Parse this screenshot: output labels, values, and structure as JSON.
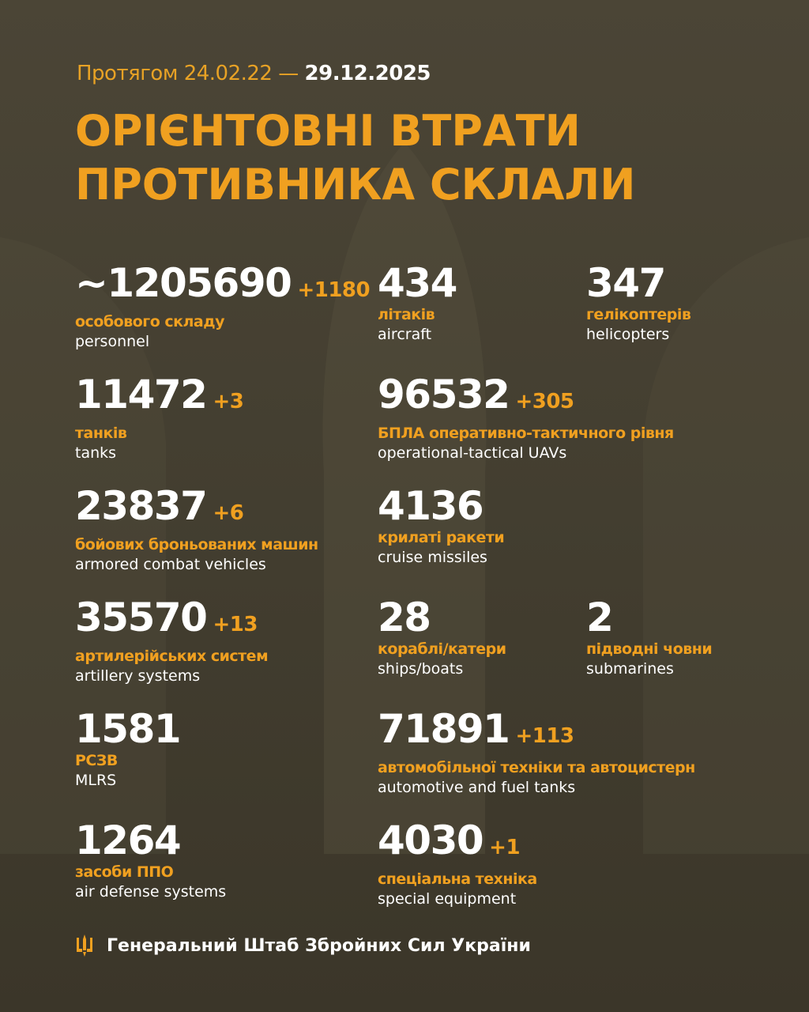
{
  "header": {
    "period_prefix": "Протягом 24.02.22 —",
    "period_end": "29.12.2025",
    "title_line1": "ОРІЄНТОВНІ ВТРАТИ",
    "title_line2": "ПРОТИВНИКА СКЛАЛИ"
  },
  "stats": [
    {
      "value": "~1205690",
      "delta": "+1180",
      "ua": "особового складу",
      "en": "personnel"
    },
    {
      "value": "434",
      "delta": "",
      "ua": "літаків",
      "en": "aircraft"
    },
    {
      "value": "347",
      "delta": "",
      "ua": "гелікоптерів",
      "en": "helicopters"
    },
    {
      "value": "11472",
      "delta": "+3",
      "ua": "танків",
      "en": "tanks"
    },
    {
      "value": "96532",
      "delta": "+305",
      "ua": "БПЛА оперативно-тактичного рівня",
      "en": "operational-tactical UAVs"
    },
    {
      "value": "23837",
      "delta": "+6",
      "ua": "бойових броньованих машин",
      "en": "armored combat vehicles"
    },
    {
      "value": "4136",
      "delta": "",
      "ua": "крилаті ракети",
      "en": "cruise missiles"
    },
    {
      "value": "35570",
      "delta": "+13",
      "ua": "артилерійських систем",
      "en": "artillery systems"
    },
    {
      "value": "28",
      "delta": "",
      "ua": "кораблі/катери",
      "en": "ships/boats"
    },
    {
      "value": "2",
      "delta": "",
      "ua": "підводні човни",
      "en": "submarines"
    },
    {
      "value": "1581",
      "delta": "",
      "ua": "РСЗВ",
      "en": "MLRS"
    },
    {
      "value": "71891",
      "delta": "+113",
      "ua": "автомобільної техніки та автоцистерн",
      "en": "automotive and fuel tanks"
    },
    {
      "value": "1264",
      "delta": "",
      "ua": "засоби ППО",
      "en": "air defense systems"
    },
    {
      "value": "4030",
      "delta": "+1",
      "ua": "спеціальна техніка",
      "en": "special equipment"
    }
  ],
  "footer": {
    "text": "Генеральний Штаб Збройних Сил України",
    "icon": "trident-icon"
  },
  "colors": {
    "accent": "#f0a020",
    "background": "#47412f"
  }
}
